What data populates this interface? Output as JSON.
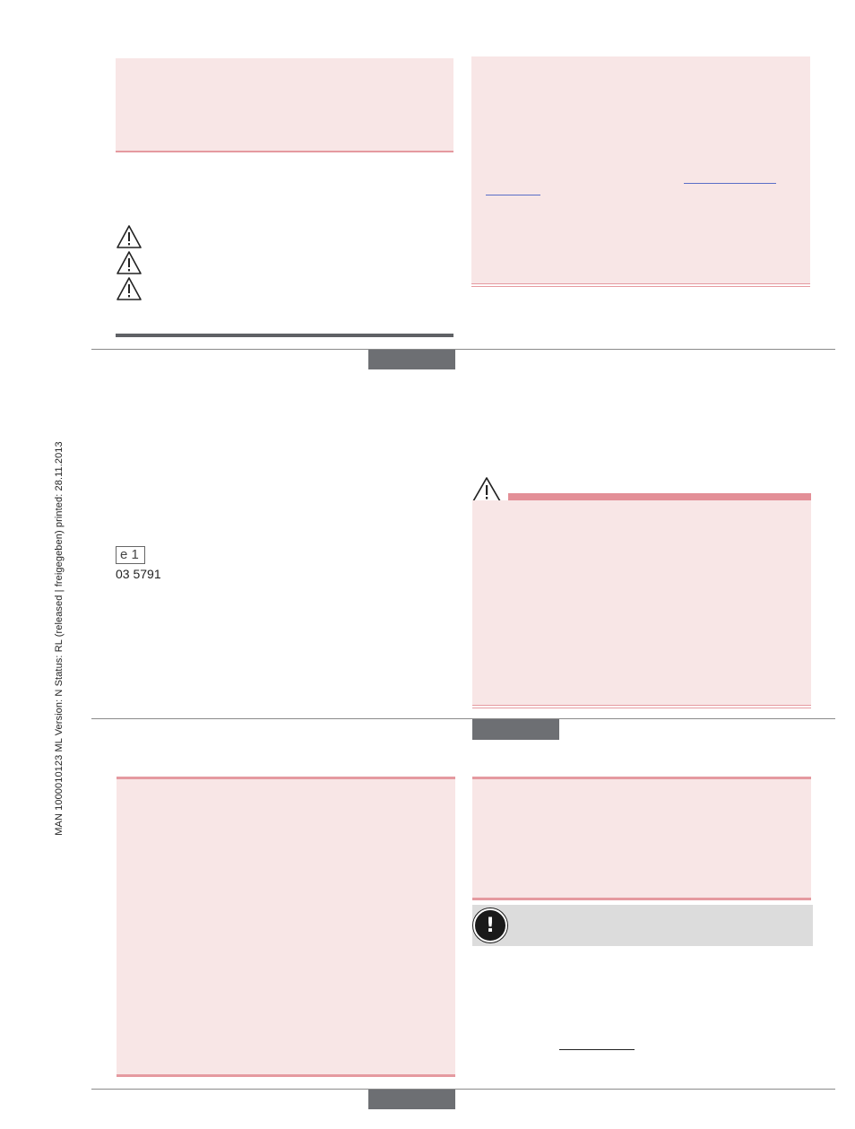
{
  "sidebar": {
    "document_info": "MAN 1000010123  ML  Version: N  Status: RL (released | freigegeben)  printed: 28.11.2013"
  },
  "approval": {
    "mark": "e 1",
    "number": "03 5791"
  },
  "icons": {
    "warning": "warning-triangle-icon",
    "notice": "exclamation-circle-icon"
  },
  "colors": {
    "pink_fill": "#f8e6e6",
    "pink_rule": "#e59aa0",
    "tab_gray": "#6d6f73",
    "notice_gray": "#dcdcdc"
  }
}
